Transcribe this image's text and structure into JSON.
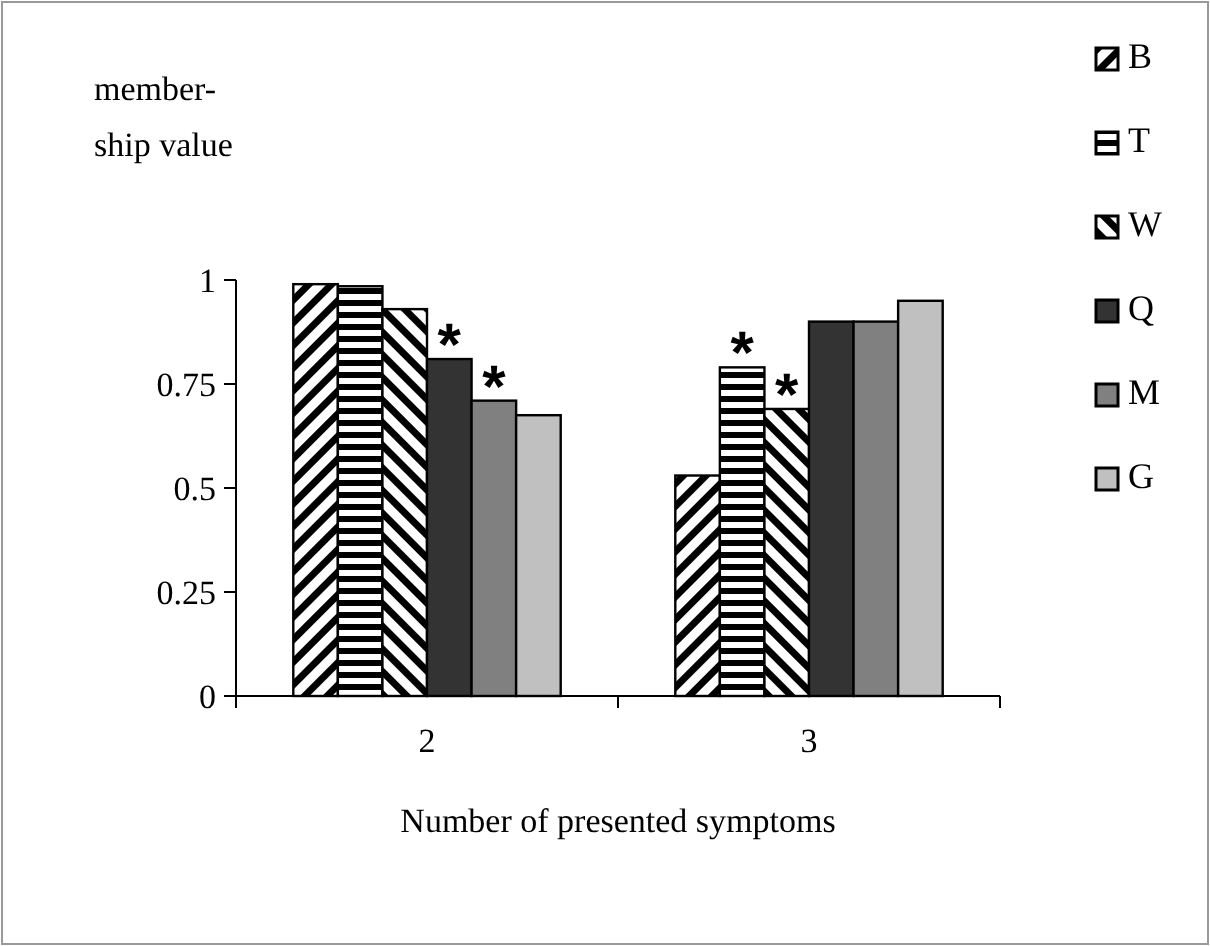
{
  "chart_data": {
    "type": "bar",
    "xlabel": "Number of presented symptoms",
    "ylabel": "member-ship value",
    "categories": [
      "2",
      "3"
    ],
    "series": [
      {
        "name": "B",
        "color": "#000000",
        "values": [
          0.99,
          0.53
        ]
      },
      {
        "name": "T",
        "color": "#000000",
        "values": [
          0.985,
          0.79
        ]
      },
      {
        "name": "W",
        "color": "#000000",
        "values": [
          0.93,
          0.69
        ]
      },
      {
        "name": "Q",
        "color": "#333333",
        "values": [
          0.81,
          0.9
        ]
      },
      {
        "name": "M",
        "color": "#808080",
        "values": [
          0.71,
          0.9
        ]
      },
      {
        "name": "G",
        "color": "#c0c0c0",
        "values": [
          0.675,
          0.95
        ]
      }
    ],
    "ylim": [
      0,
      1
    ],
    "yticks": [
      0,
      0.25,
      0.5,
      0.75,
      1
    ],
    "grid": false,
    "legend": "right",
    "annotations": [
      {
        "text": "*",
        "x": "2",
        "y": 0.81
      },
      {
        "text": "*",
        "x": "2",
        "y": 0.71
      },
      {
        "text": "*",
        "x": "3",
        "y": 0.79
      },
      {
        "text": "*",
        "x": "3",
        "y": 0.69
      }
    ]
  }
}
